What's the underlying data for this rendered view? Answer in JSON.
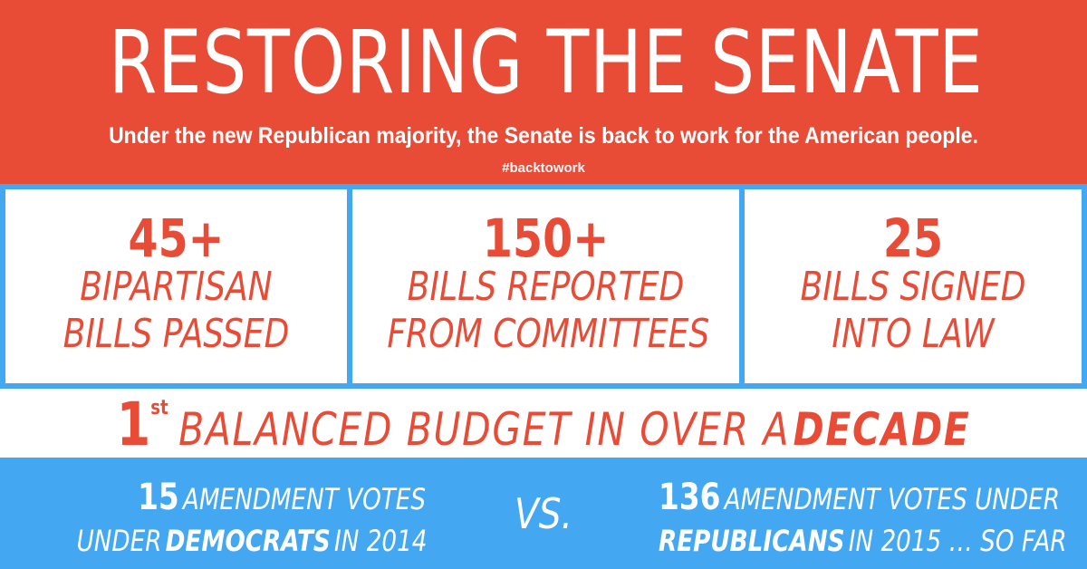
{
  "header": {
    "title": "RESTORING THE SENATE",
    "subtitle": "Under the new Republican majority, the Senate is back to work for the American people.",
    "hashtag": "#backtowork"
  },
  "stats": [
    {
      "number": "45+",
      "line1": "BIPARTISAN",
      "line2": "BILLS PASSED"
    },
    {
      "number": "150+",
      "line1": "BILLS REPORTED",
      "line2": "FROM COMMITTEES"
    },
    {
      "number": "25",
      "line1": "BILLS SIGNED",
      "line2": "INTO LAW"
    }
  ],
  "budget": {
    "number": "1",
    "ordinal": "st",
    "text": "BALANCED BUDGET IN OVER A",
    "emphasis": "DECADE"
  },
  "comparison": {
    "left": {
      "number": "15",
      "line1_rest": "AMENDMENT VOTES",
      "line2_pre": "UNDER",
      "line2_party": "DEMOCRATS",
      "line2_post": "IN 2014"
    },
    "vs": "VS.",
    "right": {
      "number": "136",
      "line1_rest": "AMENDMENT VOTES UNDER",
      "line2_party": "REPUBLICANS",
      "line2_post": "IN 2015 … SO FAR"
    }
  },
  "colors": {
    "red": "#e84c37",
    "blue": "#43a8f1",
    "white": "#ffffff"
  }
}
